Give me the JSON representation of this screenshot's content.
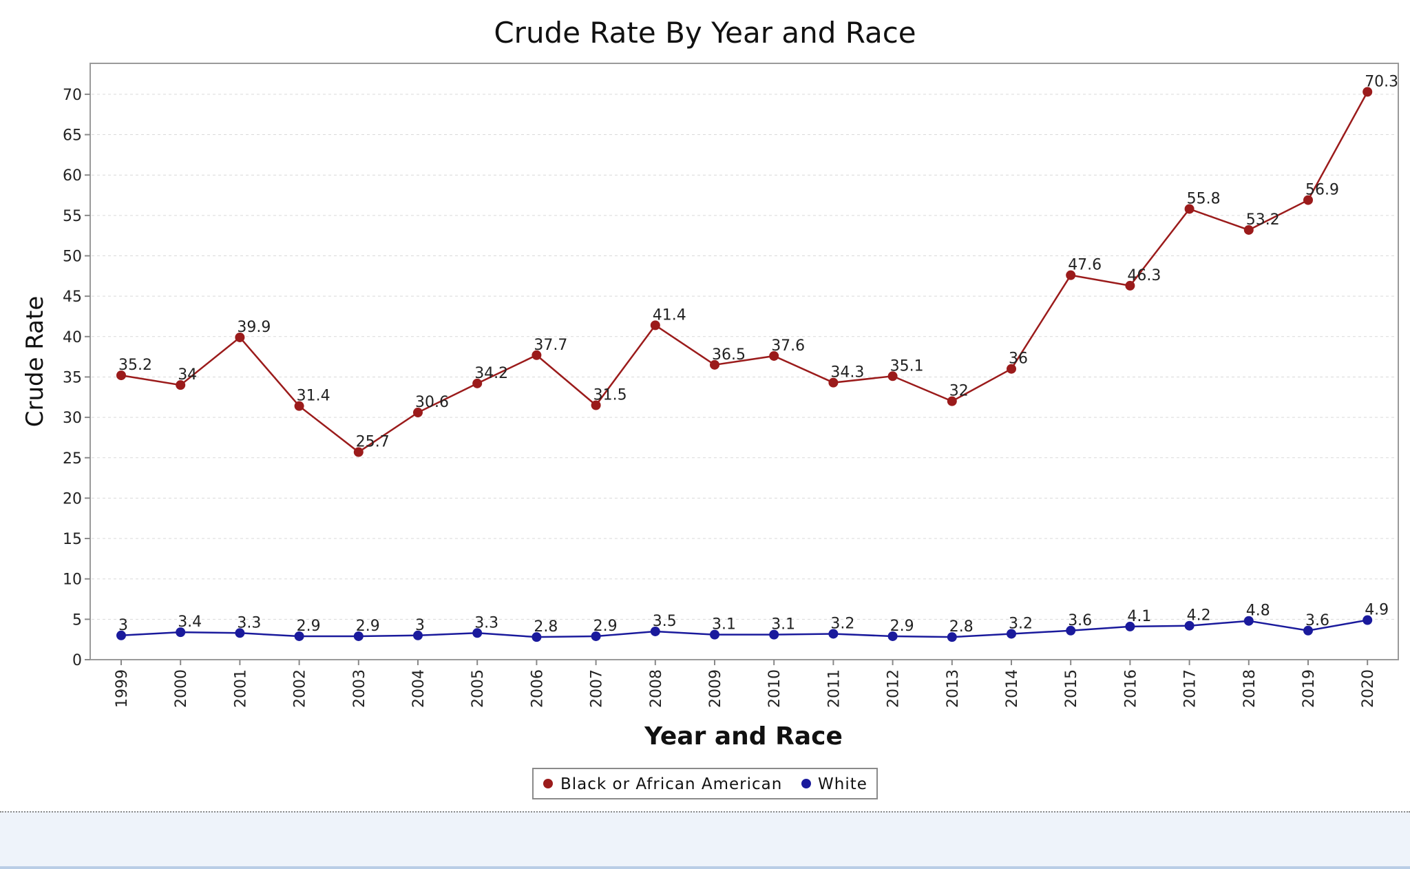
{
  "chart_data": {
    "type": "line",
    "title": "Crude Rate By Year and Race",
    "xlabel": "Year and Race",
    "ylabel": "Crude Rate",
    "categories": [
      "1999",
      "2000",
      "2001",
      "2002",
      "2003",
      "2004",
      "2005",
      "2006",
      "2007",
      "2008",
      "2009",
      "2010",
      "2011",
      "2012",
      "2013",
      "2014",
      "2015",
      "2016",
      "2017",
      "2018",
      "2019",
      "2020"
    ],
    "series": [
      {
        "name": "Black or African American",
        "color": "#9b1b1b",
        "values": [
          35.2,
          34,
          39.9,
          31.4,
          25.7,
          30.6,
          34.2,
          37.7,
          31.5,
          41.4,
          36.5,
          37.6,
          34.3,
          35.1,
          32,
          36,
          47.6,
          46.3,
          55.8,
          53.2,
          56.9,
          70.3
        ],
        "labels": [
          "35.2",
          "34",
          "39.9",
          "31.4",
          "25.7",
          "30.6",
          "34.2",
          "37.7",
          "31.5",
          "41.4",
          "36.5",
          "37.6",
          "34.3",
          "35.1",
          "32",
          "36",
          "47.6",
          "46.3",
          "55.8",
          "53.2",
          "56.9",
          "70.3"
        ]
      },
      {
        "name": "White",
        "color": "#1a1a9c",
        "values": [
          3,
          3.4,
          3.3,
          2.9,
          2.9,
          3,
          3.3,
          2.8,
          2.9,
          3.5,
          3.1,
          3.1,
          3.2,
          2.9,
          2.8,
          3.2,
          3.6,
          4.1,
          4.2,
          4.8,
          3.6,
          4.9
        ],
        "labels": [
          "3",
          "3.4",
          "3.3",
          "2.9",
          "2.9",
          "3",
          "3.3",
          "2.8",
          "2.9",
          "3.5",
          "3.1",
          "3.1",
          "3.2",
          "2.9",
          "2.8",
          "3.2",
          "3.6",
          "4.1",
          "4.2",
          "4.8",
          "3.6",
          "4.9"
        ]
      }
    ],
    "yticks": [
      "0",
      "5",
      "10",
      "15",
      "20",
      "25",
      "30",
      "35",
      "40",
      "45",
      "50",
      "55",
      "60",
      "65",
      "70"
    ],
    "ylim": [
      0,
      74
    ],
    "grid": true,
    "legend_position": "bottom-center"
  }
}
